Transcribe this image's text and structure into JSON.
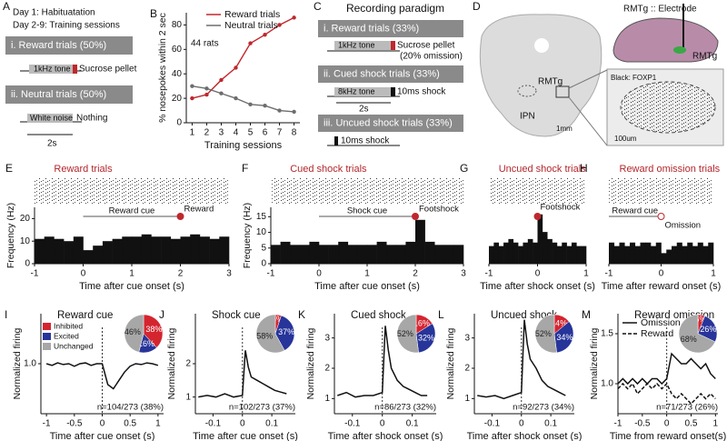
{
  "panel_a": {
    "letter": "A",
    "day1": "Day 1: Habituatation",
    "day2": "Day 2-9: Training sessions",
    "trial1": {
      "label": "i.  Reward trials (50%)",
      "cue": "1kHz tone",
      "outcome": "Sucrose pellet"
    },
    "trial2": {
      "label": "ii.  Neutral trials (50%)",
      "cue": "White noise",
      "outcome": "Nothing"
    },
    "duration": "2s"
  },
  "panel_c": {
    "letter": "C",
    "title": "Recording paradigm",
    "trial1": {
      "label": "i. Reward trials (33%)",
      "cue": "1kHz tone",
      "outcome": "Sucrose pellet",
      "note": "(20% omission)"
    },
    "trial2": {
      "label": "ii. Cued shock trials (33%)",
      "cue": "8kHz tone",
      "outcome": "10ms shock"
    },
    "trial3": {
      "label": "iii. Uncued shock trials (33%)",
      "outcome": "10ms shock"
    },
    "duration": "2s"
  },
  "panel_d": {
    "letter": "D",
    "region": "RMTg",
    "ipn": "IPN",
    "scale": "1mm",
    "schematic": "RMTg :: Electrode",
    "schematic_region": "RMTg",
    "stain": "Black: FOXP1",
    "inset_scale": "100um"
  },
  "chart_data": [
    {
      "letter": "B",
      "type": "line",
      "ylabel": "% nosepokes within 2 sec",
      "xlabel": "Training sessions",
      "annotation": "44 rats",
      "legend": "top-left",
      "x": [
        1,
        2,
        3,
        4,
        5,
        6,
        7,
        8
      ],
      "xlim": [
        0.6,
        8.4
      ],
      "xticks": [
        1,
        2,
        3,
        4,
        5,
        6,
        7,
        8
      ],
      "ylim": [
        0,
        90
      ],
      "yticks": [
        0,
        20,
        40,
        60,
        80
      ],
      "series": [
        {
          "name": "Reward trials",
          "color": "#c0272d",
          "values": [
            20,
            23,
            35,
            45,
            65,
            72,
            80,
            86
          ]
        },
        {
          "name": "Neutral trials",
          "color": "#6d6d6d",
          "values": [
            30,
            28,
            24,
            20,
            15,
            14,
            10,
            9
          ]
        }
      ]
    },
    {
      "letter": "E",
      "type": "histogram",
      "title": "Reward trials",
      "ylabel": "Frequency (Hz)",
      "xlabel": "Time after cue onset (s)",
      "cue": "Reward cue",
      "event": "Reward",
      "event_x": 2,
      "event_marker": "filled",
      "bins": [
        -1,
        -0.8,
        -0.6,
        -0.4,
        -0.2,
        0,
        0.2,
        0.4,
        0.6,
        0.8,
        1,
        1.2,
        1.4,
        1.6,
        1.8,
        2,
        2.2,
        2.4,
        2.6,
        2.8,
        3
      ],
      "values": [
        11,
        12,
        11,
        10,
        12,
        6,
        8,
        10,
        11,
        12,
        12,
        13,
        12,
        12,
        11,
        12,
        13,
        12,
        11,
        12
      ],
      "xlim": [
        -1,
        3
      ],
      "xticks": [
        -1,
        0,
        1,
        2,
        3
      ],
      "ylim": [
        0,
        25
      ],
      "yticks": [
        0,
        10,
        20
      ]
    },
    {
      "letter": "F",
      "type": "histogram",
      "title": "Cued shock trials",
      "ylabel": "Frequency (Hz)",
      "xlabel": "Time after cue onset (s)",
      "cue": "Shock cue",
      "event": "Footshock",
      "event_x": 2,
      "event_marker": "filled",
      "bins": [
        -1,
        -0.8,
        -0.6,
        -0.4,
        -0.2,
        0,
        0.2,
        0.4,
        0.6,
        0.8,
        1,
        1.2,
        1.4,
        1.6,
        1.8,
        2,
        2.2,
        2.4,
        2.6,
        2.8,
        3
      ],
      "values": [
        6,
        7,
        6,
        6,
        7,
        6,
        6,
        7,
        6,
        6,
        6,
        7,
        6,
        6,
        7,
        14,
        7,
        6,
        6,
        6
      ],
      "xlim": [
        -1,
        3
      ],
      "xticks": [
        -1,
        0,
        1,
        2,
        3
      ],
      "ylim": [
        0,
        18
      ],
      "yticks": [
        0,
        5,
        10,
        15
      ]
    },
    {
      "letter": "G",
      "type": "histogram",
      "title": "Uncued shock trials",
      "xlabel": "Time after shock onset (s)",
      "event": "Footshock",
      "event_x": 0,
      "event_marker": "filled",
      "bins": [
        -1,
        -0.9,
        -0.8,
        -0.7,
        -0.6,
        -0.5,
        -0.4,
        -0.3,
        -0.2,
        -0.1,
        0,
        0.1,
        0.2,
        0.3,
        0.4,
        0.5,
        0.6,
        0.7,
        0.8,
        0.9,
        1
      ],
      "values": [
        5,
        6,
        5,
        6,
        7,
        6,
        5,
        6,
        7,
        6,
        14,
        9,
        7,
        6,
        5,
        6,
        5,
        6,
        5,
        5
      ],
      "xlim": [
        -1,
        1
      ],
      "xticks": [
        -1,
        0,
        1
      ],
      "ylim": [
        0,
        16
      ]
    },
    {
      "letter": "H",
      "type": "histogram",
      "title": "Reward omission trials",
      "xlabel": "Time after reward onset (s)",
      "cue": "Reward cue",
      "event": "Omission",
      "event_x": 0,
      "event_marker": "open",
      "bins": [
        -1,
        -0.9,
        -0.8,
        -0.7,
        -0.6,
        -0.5,
        -0.4,
        -0.3,
        -0.2,
        -0.1,
        0,
        0.1,
        0.2,
        0.3,
        0.4,
        0.5,
        0.6,
        0.7,
        0.8,
        0.9,
        1
      ],
      "values": [
        6,
        5,
        6,
        5,
        6,
        5,
        6,
        6,
        5,
        6,
        3,
        4,
        5,
        6,
        5,
        6,
        5,
        6,
        5,
        6
      ],
      "xlim": [
        -1,
        1
      ],
      "xticks": [
        -1,
        0,
        1
      ],
      "ylim": [
        0,
        16
      ]
    },
    {
      "letter": "I",
      "type": "line",
      "title": "Reward cue",
      "ylabel": "Normalized firing",
      "xlabel": "Time after cue onset (s)",
      "annotation": "n=104/273 (38%)",
      "x": [
        -1,
        -0.9,
        -0.8,
        -0.7,
        -0.6,
        -0.5,
        -0.4,
        -0.3,
        -0.2,
        -0.1,
        0,
        0.1,
        0.2,
        0.3,
        0.4,
        0.5,
        0.6,
        0.7,
        0.8,
        0.9,
        1
      ],
      "xlim": [
        -1.1,
        1.1
      ],
      "xticks": [
        -1,
        -0.5,
        0,
        0.5,
        1
      ],
      "ylim": [
        0.4,
        1.6
      ],
      "yticks": [
        {
          "value": 1,
          "label": "1.0"
        }
      ],
      "series": [
        {
          "color": "#111111",
          "values": [
            1.0,
            0.98,
            1.01,
            0.99,
            1.0,
            0.97,
            1.0,
            1.01,
            0.98,
            1.0,
            1.0,
            0.75,
            0.7,
            0.8,
            0.9,
            0.97,
            1.0,
            0.99,
            1.01,
            1.0,
            0.98
          ]
        }
      ],
      "pie": {
        "names": [
          "Inhibited",
          "Excited",
          "Unchanged"
        ],
        "colors": [
          "#d4252f",
          "#27349a",
          "#a7a7a7"
        ],
        "values": [
          38,
          16,
          46
        ],
        "value_labels": [
          "38%",
          "16%",
          "46%"
        ]
      }
    },
    {
      "letter": "J",
      "type": "line",
      "title": "Shock cue",
      "ylabel": "Normalized firing",
      "xlabel": "Time after cue onset (s)",
      "annotation": "n=102/273 (37%)",
      "x": [
        -0.15,
        -0.12,
        -0.09,
        -0.06,
        -0.03,
        0,
        0.01,
        0.02,
        0.03,
        0.05,
        0.07,
        0.09,
        0.11,
        0.13,
        0.15
      ],
      "xlim": [
        -0.16,
        0.18
      ],
      "xticks": [
        -0.1,
        0,
        0.1
      ],
      "ylim": [
        0.5,
        3.5
      ],
      "yticks": [
        1,
        2
      ],
      "series": [
        {
          "color": "#111111",
          "values": [
            1,
            1.05,
            1,
            1.1,
            1,
            1.05,
            2.4,
            1.9,
            1.6,
            1.5,
            1.4,
            1.3,
            1.2,
            1.15,
            1.1
          ]
        }
      ],
      "pie": {
        "colors": [
          "#d4252f",
          "#27349a",
          "#a7a7a7"
        ],
        "values": [
          5,
          37,
          58
        ],
        "value_labels": [
          "5%",
          "37%",
          "58%"
        ]
      }
    },
    {
      "letter": "K",
      "type": "line",
      "title": "Cued shock",
      "ylabel": "Normalized firing",
      "xlabel": "Time after shock onset (s)",
      "annotation": "n=86/273 (32%)",
      "x": [
        -0.15,
        -0.12,
        -0.09,
        -0.06,
        -0.03,
        0,
        0.01,
        0.02,
        0.03,
        0.05,
        0.07,
        0.09,
        0.11,
        0.13,
        0.15
      ],
      "xlim": [
        -0.16,
        0.18
      ],
      "xticks": [
        -0.1,
        0,
        0.1
      ],
      "ylim": [
        0.5,
        3.8
      ],
      "yticks": [
        1,
        2,
        3
      ],
      "series": [
        {
          "color": "#111111",
          "values": [
            1.1,
            1.2,
            1.05,
            1.1,
            1.1,
            1.2,
            3.4,
            2.6,
            2.0,
            1.6,
            1.4,
            1.3,
            1.2,
            1.1,
            1.1
          ]
        }
      ],
      "pie": {
        "colors": [
          "#d4252f",
          "#27349a",
          "#a7a7a7"
        ],
        "values": [
          16,
          32,
          52
        ],
        "value_labels": [
          "16%",
          "32%",
          "52%"
        ]
      }
    },
    {
      "letter": "L",
      "type": "line",
      "title": "Uncued shock",
      "ylabel": "Normalized firing",
      "xlabel": "Time after shock onset (s)",
      "annotation": "n=92/273 (34%)",
      "x": [
        -0.15,
        -0.12,
        -0.09,
        -0.06,
        -0.03,
        0,
        0.01,
        0.02,
        0.03,
        0.05,
        0.07,
        0.09,
        0.11,
        0.13,
        0.15
      ],
      "xlim": [
        -0.16,
        0.18
      ],
      "xticks": [
        -0.1,
        0,
        0.1
      ],
      "ylim": [
        0.5,
        3.8
      ],
      "yticks": [
        1,
        2,
        3
      ],
      "series": [
        {
          "color": "#111111",
          "values": [
            1.1,
            1.05,
            1.1,
            1.0,
            1.1,
            1.2,
            3.6,
            2.8,
            2.3,
            2.0,
            1.6,
            1.4,
            1.3,
            1.2,
            1.1
          ]
        }
      ],
      "pie": {
        "colors": [
          "#d4252f",
          "#27349a",
          "#a7a7a7"
        ],
        "values": [
          14,
          34,
          52
        ],
        "value_labels": [
          "14%",
          "34%",
          "52%"
        ]
      }
    },
    {
      "letter": "M",
      "type": "line",
      "title": "Reward omission",
      "ylabel": "Normalized firing",
      "xlabel": "Time from reward onset(s)",
      "annotation": "n=71/273 (26%)",
      "legend": "top-left",
      "x": [
        -1,
        -0.9,
        -0.8,
        -0.7,
        -0.6,
        -0.5,
        -0.4,
        -0.3,
        -0.2,
        -0.1,
        0,
        0.1,
        0.2,
        0.3,
        0.4,
        0.5,
        0.6,
        0.7,
        0.8,
        0.9,
        1
      ],
      "xlim": [
        -1,
        1.05
      ],
      "xticks": [
        -1,
        -0.5,
        0,
        0.5,
        1
      ],
      "ylim": [
        0.7,
        1.7
      ],
      "yticks": [
        {
          "value": 1,
          "label": "1.0"
        },
        {
          "value": 1.5,
          "label": "1.5"
        }
      ],
      "series": [
        {
          "name": "Omission",
          "color": "#111111",
          "values": [
            1.0,
            1.05,
            1.0,
            1.05,
            1.0,
            1.05,
            1.0,
            1.05,
            1.05,
            1.0,
            1.05,
            1.3,
            1.25,
            1.2,
            1.2,
            1.25,
            1.2,
            1.15,
            1.2,
            1.1,
            1.05
          ]
        },
        {
          "name": "Reward",
          "color": "#111111",
          "dashed": true,
          "values": [
            0.95,
            1.0,
            0.95,
            1.0,
            0.9,
            0.95,
            1.0,
            0.95,
            1.0,
            0.95,
            1.0,
            0.9,
            0.85,
            0.9,
            0.85,
            0.8,
            0.85,
            0.9,
            0.85,
            0.9,
            0.85
          ]
        }
      ],
      "pie": {
        "colors": [
          "#d4252f",
          "#27349a",
          "#a7a7a7"
        ],
        "values": [
          6,
          26,
          68
        ],
        "value_labels": [
          "6%",
          "26%",
          "68%"
        ]
      }
    }
  ]
}
